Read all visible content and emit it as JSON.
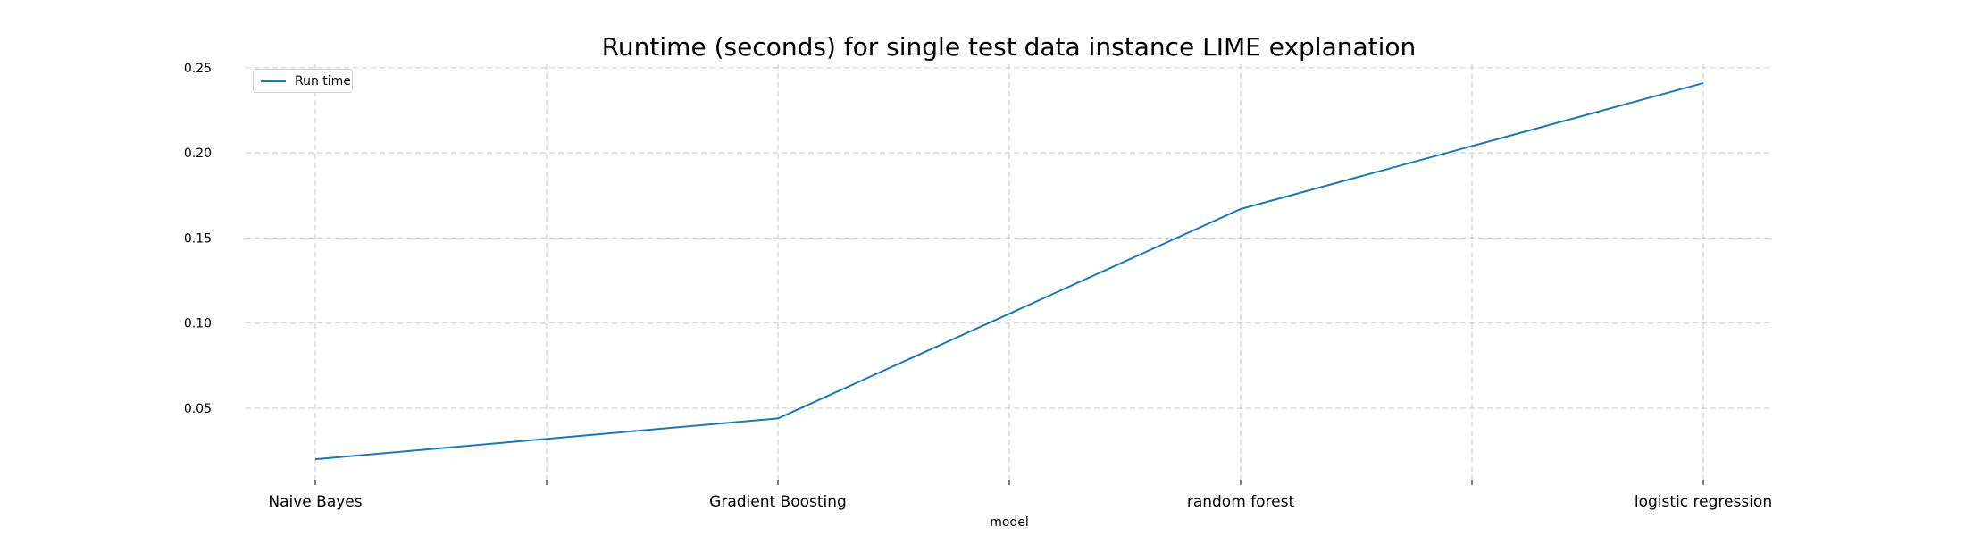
{
  "chart_data": {
    "type": "line",
    "title": "Runtime (seconds) for single test data instance LIME explanation",
    "xlabel": "model",
    "ylabel": "",
    "categories": [
      "Naive Bayes",
      "Gradient Boosting",
      "random forest",
      "logistic regression"
    ],
    "series": [
      {
        "name": "Run time",
        "values": [
          0.02,
          0.044,
          0.167,
          0.241
        ],
        "color": "#1f77b4"
      }
    ],
    "yticks": [
      "0.05",
      "0.10",
      "0.15",
      "0.20",
      "0.25"
    ],
    "ylim": [
      0.008,
      0.252
    ],
    "grid": true,
    "legend_position": "top-left"
  }
}
